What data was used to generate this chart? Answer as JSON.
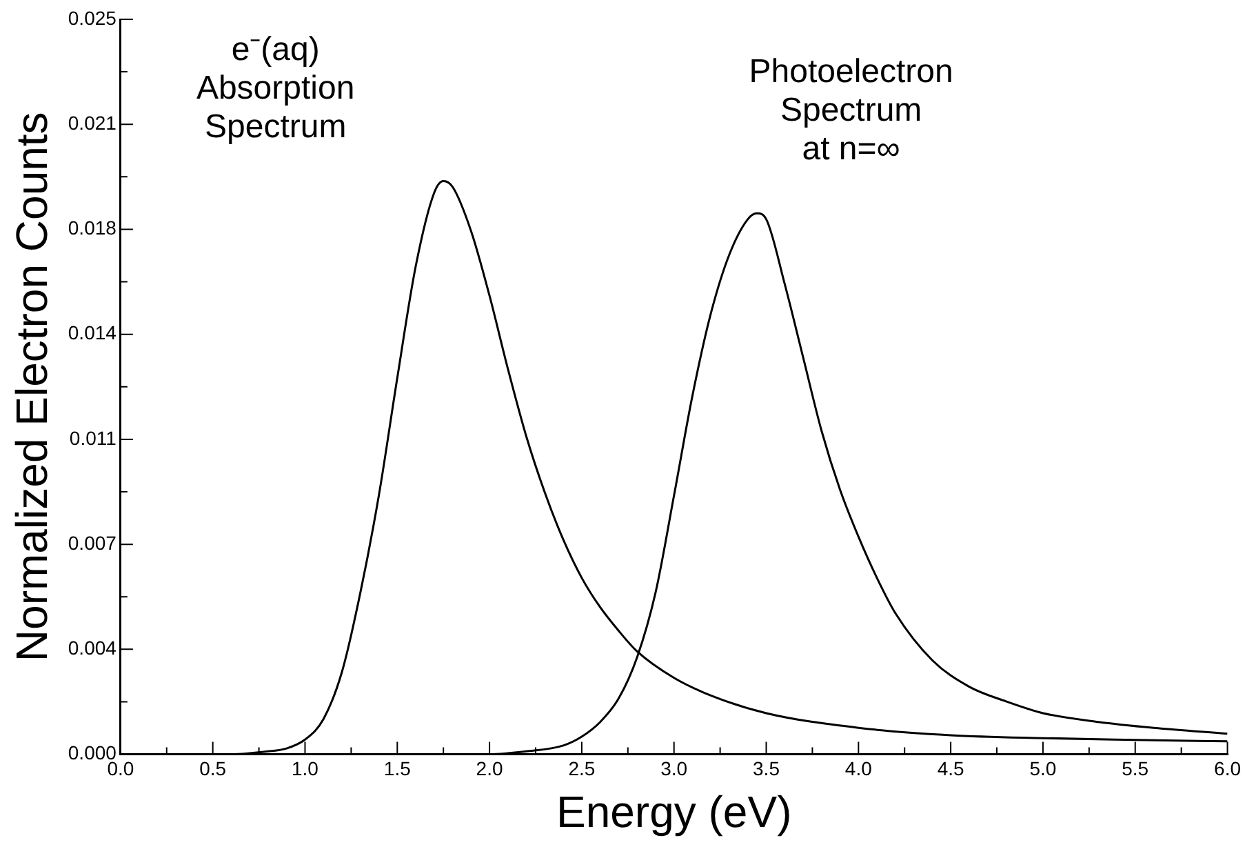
{
  "chart_data": {
    "type": "line",
    "xlabel": "Energy (eV)",
    "ylabel": "Normalized Electron Counts",
    "xlim": [
      0,
      6
    ],
    "xticks": [
      {
        "value": 0,
        "label": "0.0"
      },
      {
        "value": 0.25,
        "label": null
      },
      {
        "value": 0.5,
        "label": "0.5"
      },
      {
        "value": 0.75,
        "label": null
      },
      {
        "value": 1,
        "label": "1.0"
      },
      {
        "value": 1.25,
        "label": null
      },
      {
        "value": 1.5,
        "label": "1.5"
      },
      {
        "value": 1.75,
        "label": null
      },
      {
        "value": 2,
        "label": "2.0"
      },
      {
        "value": 2.25,
        "label": null
      },
      {
        "value": 2.5,
        "label": "2.5"
      },
      {
        "value": 2.75,
        "label": null
      },
      {
        "value": 3,
        "label": "3.0"
      },
      {
        "value": 3.25,
        "label": null
      },
      {
        "value": 3.5,
        "label": "3.5"
      },
      {
        "value": 3.75,
        "label": null
      },
      {
        "value": 4,
        "label": "4.0"
      },
      {
        "value": 4.25,
        "label": null
      },
      {
        "value": 4.5,
        "label": "4.5"
      },
      {
        "value": 4.75,
        "label": null
      },
      {
        "value": 5,
        "label": "5.0"
      },
      {
        "value": 5.25,
        "label": null
      },
      {
        "value": 5.5,
        "label": "5.5"
      },
      {
        "value": 5.75,
        "label": null
      },
      {
        "value": 6,
        "label": "6.0"
      }
    ],
    "ylim": [
      0,
      0.025
    ],
    "yticks": [
      {
        "value": 0,
        "label": "0.000"
      },
      {
        "value": 0.0017857,
        "label": null
      },
      {
        "value": 0.0035714,
        "label": "0.004"
      },
      {
        "value": 0.0053571,
        "label": null
      },
      {
        "value": 0.0071429,
        "label": "0.007"
      },
      {
        "value": 0.0089286,
        "label": null
      },
      {
        "value": 0.0107143,
        "label": "0.011"
      },
      {
        "value": 0.0125,
        "label": null
      },
      {
        "value": 0.0142857,
        "label": "0.014"
      },
      {
        "value": 0.0160714,
        "label": null
      },
      {
        "value": 0.0178571,
        "label": "0.018"
      },
      {
        "value": 0.0196429,
        "label": null
      },
      {
        "value": 0.0214286,
        "label": "0.021"
      },
      {
        "value": 0.0232143,
        "label": null
      },
      {
        "value": 0.025,
        "label": "0.025"
      }
    ],
    "grid": false,
    "legend": false,
    "marker": "none",
    "line_style": "solid",
    "series": [
      {
        "name": "e⁻(aq)\nAbsorption\nSpectrum",
        "color": "#000000",
        "x": [
          0,
          0.6,
          0.8,
          0.9,
          1.0,
          1.1,
          1.2,
          1.3,
          1.4,
          1.5,
          1.6,
          1.7,
          1.75,
          1.8,
          1.9,
          2.0,
          2.1,
          2.2,
          2.3,
          2.4,
          2.5,
          2.6,
          2.7,
          2.8,
          3.0,
          3.2,
          3.5,
          4.0,
          4.5,
          5.0,
          5.5,
          6.0
        ],
        "values": [
          0,
          0,
          0.0001,
          0.0002,
          0.0005,
          0.0012,
          0.0028,
          0.0055,
          0.0088,
          0.0128,
          0.0166,
          0.0191,
          0.0195,
          0.0193,
          0.0178,
          0.0156,
          0.0131,
          0.0108,
          0.0089,
          0.0073,
          0.006,
          0.005,
          0.0042,
          0.0035,
          0.0026,
          0.002,
          0.0014,
          0.0009,
          0.00065,
          0.00055,
          0.00049,
          0.00044
        ]
      },
      {
        "name": "Photoelectron\nSpectrum\nat n=∞",
        "color": "#000000",
        "x": [
          0,
          2.0,
          2.2,
          2.4,
          2.5,
          2.6,
          2.7,
          2.8,
          2.9,
          3.0,
          3.1,
          3.2,
          3.3,
          3.4,
          3.45,
          3.5,
          3.6,
          3.7,
          3.8,
          3.9,
          4.0,
          4.1,
          4.2,
          4.4,
          4.6,
          4.8,
          5.0,
          5.3,
          5.6,
          6.0
        ],
        "values": [
          0,
          0,
          0.0001,
          0.0003,
          0.0006,
          0.0011,
          0.0019,
          0.0033,
          0.0055,
          0.0088,
          0.0122,
          0.015,
          0.017,
          0.0182,
          0.0184,
          0.0182,
          0.016,
          0.0135,
          0.011,
          0.009,
          0.0074,
          0.006,
          0.0048,
          0.0032,
          0.0023,
          0.0018,
          0.0014,
          0.0011,
          0.0009,
          0.0007
        ]
      }
    ]
  }
}
